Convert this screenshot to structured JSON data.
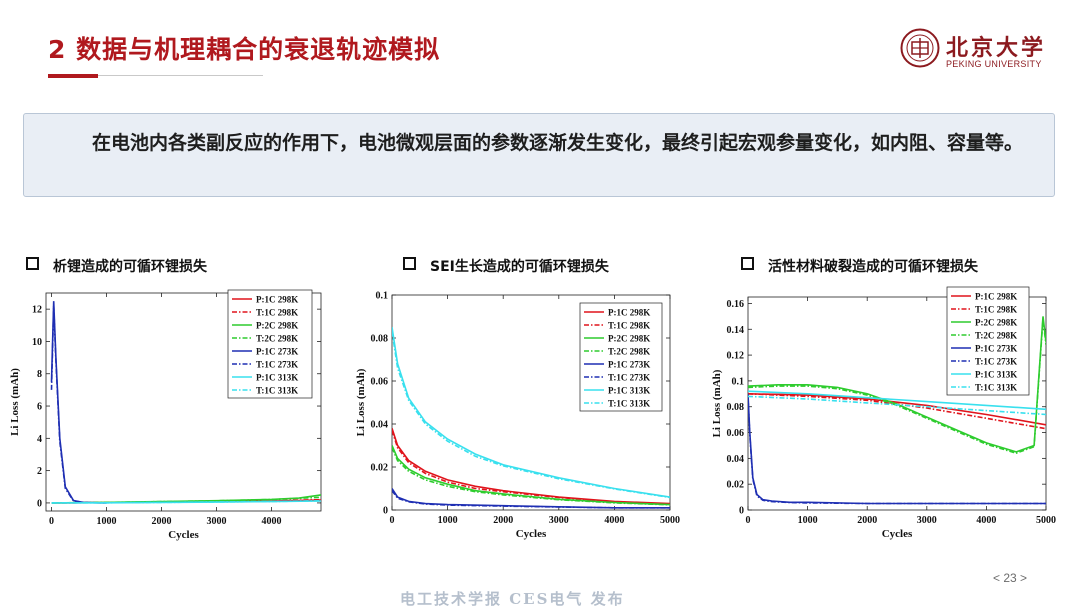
{
  "slide": {
    "title": "2 数据与机理耦合的衰退轨迹模拟",
    "note": "在电池内各类副反应的作用下，电池微观层面的参数逐渐发生变化，最终引起宏观参量变化，如内阻、容量等。",
    "page_number": "< 23 >",
    "watermark": "电工技术学报 CES电气 发布"
  },
  "logo": {
    "name_cn": "北京大学",
    "name_en": "PEKING UNIVERSITY",
    "color": "#8c1a1f"
  },
  "legend_labels": [
    "P:1C 298K",
    "T:1C 298K",
    "P:2C 298K",
    "T:2C 298K",
    "P:1C 273K",
    "T:1C 273K",
    "P:1C 313K",
    "T:1C 313K"
  ],
  "chart_data": [
    {
      "type": "line",
      "heading": "析锂造成的可循环锂损失",
      "xlabel": "Cycles",
      "ylabel": "Li Loss (mAh)",
      "xlim": [
        -100,
        4900
      ],
      "ylim": [
        -0.5,
        13
      ],
      "xticks": [
        0,
        1000,
        2000,
        3000,
        4000
      ],
      "yticks": [
        0,
        2,
        4,
        6,
        8,
        10,
        12
      ],
      "legend": "top-right",
      "series": [
        {
          "name": "P:1C 298K",
          "color": "#e0141c",
          "dash": "solid",
          "x": [
            0,
            1000,
            2000,
            3000,
            4000,
            4900
          ],
          "y": [
            0,
            0.02,
            0.05,
            0.08,
            0.12,
            0.18
          ]
        },
        {
          "name": "T:1C 298K",
          "color": "#e0141c",
          "dash": "dashdot",
          "x": [
            0,
            1000,
            2000,
            3000,
            4000,
            4900
          ],
          "y": [
            0,
            0.02,
            0.05,
            0.09,
            0.13,
            0.2
          ]
        },
        {
          "name": "P:2C 298K",
          "color": "#2ecc2e",
          "dash": "solid",
          "x": [
            0,
            1000,
            2000,
            3000,
            4000,
            4500,
            4900
          ],
          "y": [
            0,
            0.03,
            0.08,
            0.14,
            0.22,
            0.3,
            0.5
          ]
        },
        {
          "name": "T:2C 298K",
          "color": "#2ecc2e",
          "dash": "dashdot",
          "x": [
            0,
            1000,
            2000,
            3000,
            4000,
            4900
          ],
          "y": [
            0,
            0.03,
            0.08,
            0.13,
            0.21,
            0.35
          ]
        },
        {
          "name": "P:1C 273K",
          "color": "#1f2fb3",
          "dash": "solid",
          "x": [
            0,
            40,
            80,
            150,
            250,
            400,
            600,
            1000
          ],
          "y": [
            7.5,
            12.5,
            9.0,
            4.0,
            1.0,
            0.15,
            0.02,
            0
          ]
        },
        {
          "name": "T:1C 273K",
          "color": "#1f2fb3",
          "dash": "dashdot",
          "x": [
            0,
            40,
            80,
            150,
            250,
            400,
            600,
            1000
          ],
          "y": [
            7.0,
            12.2,
            8.8,
            3.8,
            0.9,
            0.12,
            0.02,
            0
          ]
        },
        {
          "name": "P:1C 313K",
          "color": "#39e0ee",
          "dash": "solid",
          "x": [
            0,
            1000,
            2000,
            3000,
            4000,
            4900
          ],
          "y": [
            0,
            0.01,
            0.03,
            0.05,
            0.08,
            0.12
          ]
        },
        {
          "name": "T:1C 313K",
          "color": "#39e0ee",
          "dash": "dashdot",
          "x": [
            0,
            1000,
            2000,
            3000,
            4000,
            4900
          ],
          "y": [
            0,
            0.01,
            0.03,
            0.06,
            0.09,
            0.13
          ]
        }
      ]
    },
    {
      "type": "line",
      "heading": "SEI生长造成的可循环锂损失",
      "xlabel": "Cycles",
      "ylabel": "Li Loss (mAh)",
      "xlim": [
        0,
        5000
      ],
      "ylim": [
        0,
        0.1
      ],
      "xticks": [
        0,
        1000,
        2000,
        3000,
        4000,
        5000
      ],
      "yticks": [
        0,
        0.02,
        0.04,
        0.06,
        0.08,
        0.1
      ],
      "legend": "top-right",
      "series": [
        {
          "name": "P:1C 298K",
          "color": "#e0141c",
          "dash": "solid",
          "x": [
            0,
            100,
            300,
            600,
            1000,
            1500,
            2000,
            3000,
            4000,
            5000
          ],
          "y": [
            0.038,
            0.03,
            0.023,
            0.018,
            0.014,
            0.011,
            0.009,
            0.006,
            0.004,
            0.003
          ]
        },
        {
          "name": "T:1C 298K",
          "color": "#e0141c",
          "dash": "dashdot",
          "x": [
            0,
            100,
            300,
            600,
            1000,
            1500,
            2000,
            3000,
            4000,
            5000
          ],
          "y": [
            0.037,
            0.029,
            0.022,
            0.017,
            0.013,
            0.01,
            0.0085,
            0.0058,
            0.0038,
            0.0028
          ]
        },
        {
          "name": "P:2C 298K",
          "color": "#2ecc2e",
          "dash": "solid",
          "x": [
            0,
            100,
            300,
            600,
            1000,
            1500,
            2000,
            3000,
            4000,
            5000
          ],
          "y": [
            0.03,
            0.024,
            0.019,
            0.015,
            0.012,
            0.009,
            0.0075,
            0.005,
            0.0035,
            0.0025
          ]
        },
        {
          "name": "T:2C 298K",
          "color": "#2ecc2e",
          "dash": "dashdot",
          "x": [
            0,
            100,
            300,
            600,
            1000,
            1500,
            2000,
            3000,
            4000,
            5000
          ],
          "y": [
            0.029,
            0.023,
            0.018,
            0.014,
            0.011,
            0.0085,
            0.007,
            0.0048,
            0.0033,
            0.0024
          ]
        },
        {
          "name": "P:1C 273K",
          "color": "#1f2fb3",
          "dash": "solid",
          "x": [
            0,
            100,
            300,
            600,
            1000,
            2000,
            3000,
            4000,
            5000
          ],
          "y": [
            0.01,
            0.006,
            0.004,
            0.003,
            0.0025,
            0.002,
            0.0015,
            0.001,
            0.001
          ]
        },
        {
          "name": "T:1C 273K",
          "color": "#1f2fb3",
          "dash": "dashdot",
          "x": [
            0,
            100,
            300,
            600,
            1000,
            2000,
            3000,
            4000,
            5000
          ],
          "y": [
            0.009,
            0.0055,
            0.0038,
            0.0028,
            0.0023,
            0.0018,
            0.0014,
            0.001,
            0.001
          ]
        },
        {
          "name": "P:1C 313K",
          "color": "#39e0ee",
          "dash": "solid",
          "x": [
            0,
            100,
            300,
            600,
            1000,
            1500,
            2000,
            3000,
            4000,
            5000
          ],
          "y": [
            0.085,
            0.068,
            0.052,
            0.041,
            0.033,
            0.026,
            0.021,
            0.015,
            0.01,
            0.006
          ]
        },
        {
          "name": "T:1C 313K",
          "color": "#39e0ee",
          "dash": "dashdot",
          "x": [
            0,
            100,
            300,
            600,
            1000,
            1500,
            2000,
            3000,
            4000,
            5000
          ],
          "y": [
            0.083,
            0.066,
            0.051,
            0.04,
            0.032,
            0.025,
            0.0205,
            0.0145,
            0.0098,
            0.0058
          ]
        }
      ]
    },
    {
      "type": "line",
      "heading": "活性材料破裂造成的可循环锂损失",
      "xlabel": "Cycles",
      "ylabel": "Li Loss (mAh)",
      "xlim": [
        0,
        5000
      ],
      "ylim": [
        0,
        0.165
      ],
      "xticks": [
        0,
        1000,
        2000,
        3000,
        4000,
        5000
      ],
      "yticks": [
        0,
        0.02,
        0.04,
        0.06,
        0.08,
        0.1,
        0.12,
        0.14,
        0.16
      ],
      "legend": "top-right",
      "series": [
        {
          "name": "P:1C 298K",
          "color": "#e0141c",
          "dash": "solid",
          "x": [
            0,
            1000,
            2000,
            3000,
            4000,
            5000
          ],
          "y": [
            0.09,
            0.089,
            0.086,
            0.081,
            0.074,
            0.066
          ]
        },
        {
          "name": "T:1C 298K",
          "color": "#e0141c",
          "dash": "dashdot",
          "x": [
            0,
            1000,
            2000,
            3000,
            4000,
            5000
          ],
          "y": [
            0.09,
            0.088,
            0.085,
            0.079,
            0.071,
            0.063
          ]
        },
        {
          "name": "P:2C 298K",
          "color": "#2ecc2e",
          "dash": "solid",
          "x": [
            0,
            500,
            1000,
            1500,
            2000,
            2500,
            3000,
            3500,
            4000,
            4500,
            4800,
            4950,
            5000
          ],
          "y": [
            0.096,
            0.097,
            0.097,
            0.095,
            0.09,
            0.082,
            0.072,
            0.062,
            0.052,
            0.045,
            0.05,
            0.15,
            0.13
          ]
        },
        {
          "name": "T:2C 298K",
          "color": "#2ecc2e",
          "dash": "dashdot",
          "x": [
            0,
            500,
            1000,
            1500,
            2000,
            2500,
            3000,
            3500,
            4000,
            4500,
            4800,
            4950,
            5000
          ],
          "y": [
            0.095,
            0.096,
            0.096,
            0.094,
            0.089,
            0.081,
            0.071,
            0.061,
            0.051,
            0.044,
            0.049,
            0.148,
            0.128
          ]
        },
        {
          "name": "P:1C 273K",
          "color": "#1f2fb3",
          "dash": "solid",
          "x": [
            0,
            30,
            80,
            150,
            250,
            400,
            700,
            1000,
            2000,
            3000,
            4000,
            5000
          ],
          "y": [
            0.09,
            0.06,
            0.025,
            0.012,
            0.008,
            0.007,
            0.006,
            0.006,
            0.005,
            0.005,
            0.005,
            0.005
          ]
        },
        {
          "name": "T:1C 273K",
          "color": "#1f2fb3",
          "dash": "dashdot",
          "x": [
            0,
            30,
            80,
            150,
            250,
            400,
            700,
            1000,
            2000,
            3000,
            4000,
            5000
          ],
          "y": [
            0.088,
            0.058,
            0.024,
            0.011,
            0.0075,
            0.0065,
            0.0058,
            0.0055,
            0.005,
            0.005,
            0.005,
            0.005
          ]
        },
        {
          "name": "P:1C 313K",
          "color": "#39e0ee",
          "dash": "solid",
          "x": [
            0,
            1000,
            2000,
            3000,
            4000,
            5000
          ],
          "y": [
            0.092,
            0.09,
            0.087,
            0.084,
            0.081,
            0.078
          ]
        },
        {
          "name": "T:1C 313K",
          "color": "#39e0ee",
          "dash": "dashdot",
          "x": [
            0,
            1000,
            2000,
            3000,
            4000,
            5000
          ],
          "y": [
            0.088,
            0.086,
            0.083,
            0.08,
            0.077,
            0.074
          ]
        }
      ]
    }
  ]
}
